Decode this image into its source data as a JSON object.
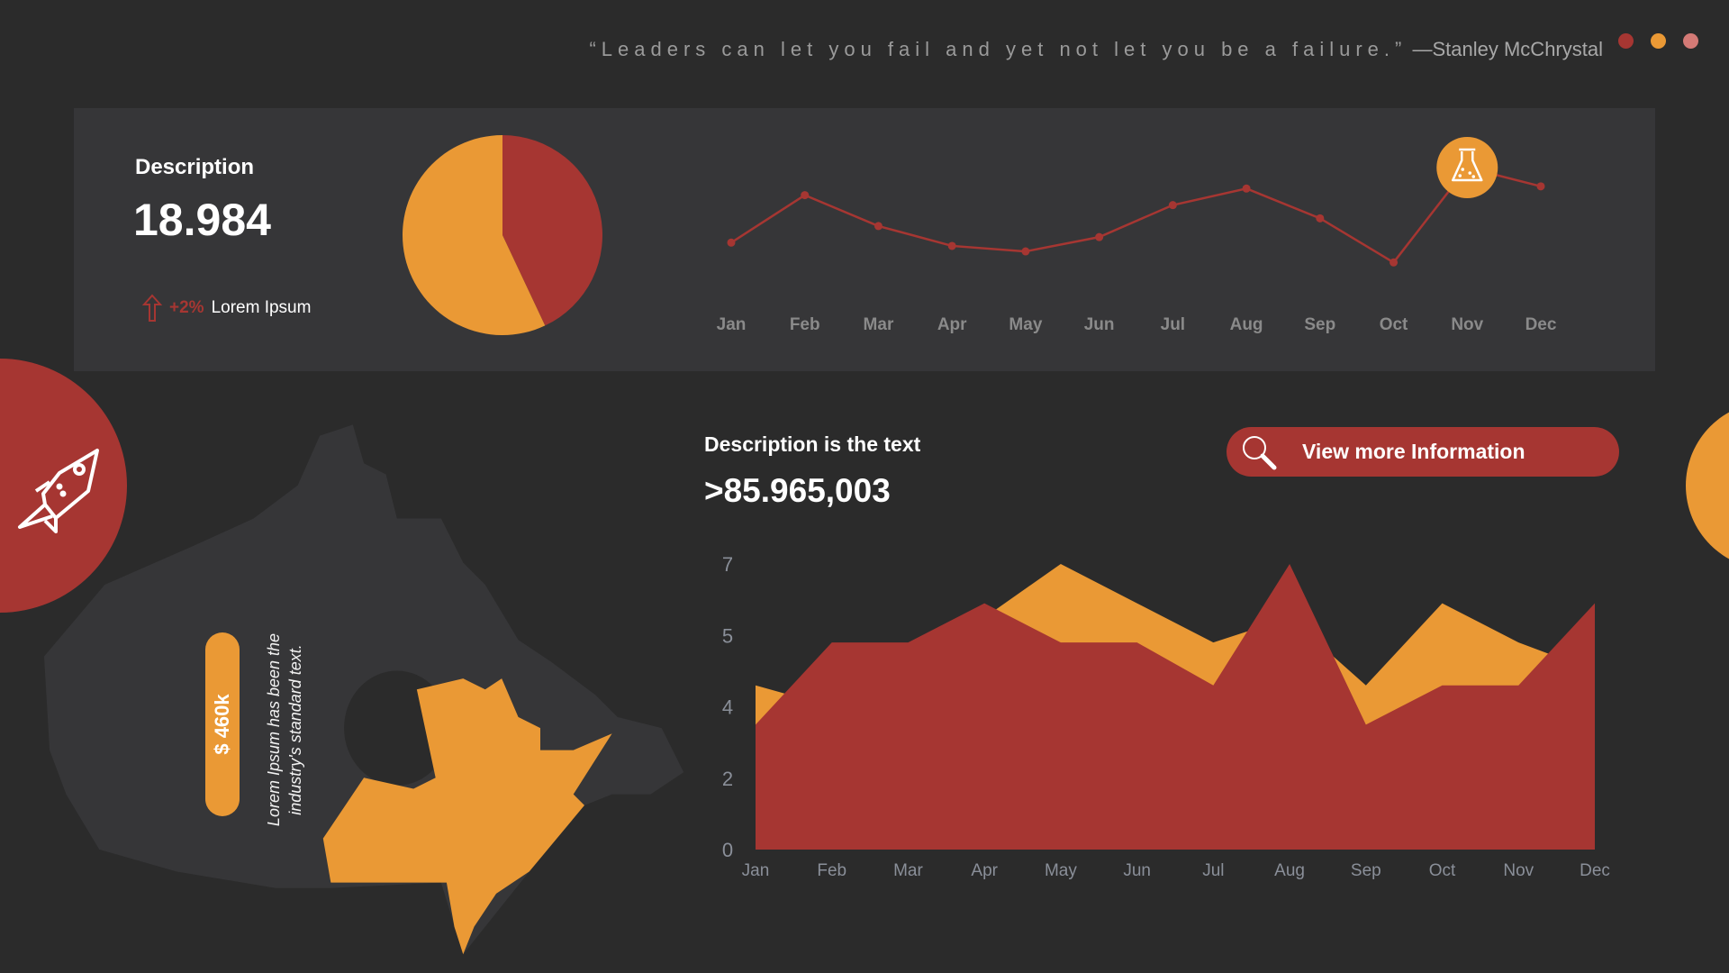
{
  "header": {
    "quote": "“Leaders can let you fail and yet not let you be a failure.”",
    "author": "—Stanley McChrystal",
    "window_dots": [
      "#a63632",
      "#ea9935",
      "#d47a76"
    ]
  },
  "colors": {
    "red": "#a63632",
    "orange": "#ea9935",
    "panel": "#363638",
    "background": "#2b2b2b"
  },
  "summary": {
    "label": "Description",
    "value": "18.984",
    "trend_icon": "arrow-up-icon",
    "trend_pct": "+2%",
    "trend_label": "Lorem Ipsum"
  },
  "chart_data": [
    {
      "type": "pie",
      "slices": [
        {
          "color": "#a63632",
          "value": 43
        },
        {
          "color": "#ea9935",
          "value": 57
        }
      ]
    },
    {
      "type": "line",
      "categories": [
        "Jan",
        "Feb",
        "Mar",
        "Apr",
        "May",
        "Jun",
        "Jul",
        "Aug",
        "Sep",
        "Oct",
        "Nov",
        "Dec"
      ],
      "values": [
        30,
        73,
        45,
        27,
        22,
        35,
        64,
        79,
        52,
        12,
        98,
        81
      ],
      "color": "#a63632",
      "highlight": {
        "category": "Nov",
        "icon": "flask-icon"
      },
      "grid": false
    },
    {
      "type": "area",
      "categories": [
        "Jan",
        "Feb",
        "Mar",
        "Apr",
        "May",
        "Jun",
        "Jul",
        "Aug",
        "Sep",
        "Oct",
        "Nov",
        "Dec"
      ],
      "y_ticks": [
        0,
        2,
        4,
        5,
        7
      ],
      "series": [
        {
          "color": "#ea9935",
          "values": [
            4.3,
            4.0,
            4.5,
            5.5,
            7,
            5.9,
            4.9,
            5.5,
            4.3,
            5.9,
            4.9,
            4.5
          ]
        },
        {
          "color": "#a63632",
          "values": [
            3.5,
            4.9,
            4.9,
            5.9,
            4.9,
            4.9,
            4.3,
            7,
            3.5,
            4.3,
            4.3,
            5.9
          ]
        }
      ],
      "grid": false
    }
  ],
  "map": {
    "pill_value": "$ 460k",
    "text_line1": "Lorem Ipsum has been the",
    "text_line2": "industry's standard text."
  },
  "details": {
    "label": "Description is the text",
    "value": ">85.965,003",
    "button_label": "View  more Information",
    "button_icon": "search-icon"
  },
  "decor": {
    "left_circle_icon": "rocket-icon"
  }
}
